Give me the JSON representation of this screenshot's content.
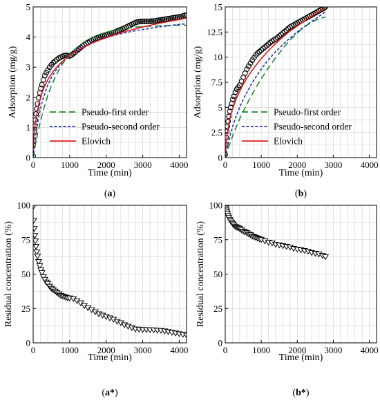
{
  "chart_data": [
    {
      "id": "a",
      "type": "line",
      "panel_label": "a",
      "xlabel": "Time (min)",
      "ylabel": "Adsorption (mg/g)",
      "xlim": [
        0,
        4200
      ],
      "ylim": [
        0,
        5
      ],
      "xticks": [
        0,
        1000,
        2000,
        3000,
        4000
      ],
      "yticks": [
        0,
        1,
        2,
        3,
        4,
        5
      ],
      "grid": true,
      "legend": "bottom-right",
      "marker_series": {
        "marker": "circle",
        "color": "#000000",
        "x": [
          0,
          15,
          30,
          45,
          60,
          80,
          100,
          120,
          150,
          180,
          210,
          240,
          280,
          320,
          360,
          400,
          450,
          500,
          550,
          600,
          650,
          700,
          750,
          800,
          850,
          900,
          950,
          1000,
          1050,
          1100,
          1150,
          1200,
          1250,
          1300,
          1350,
          1400,
          1450,
          1500,
          1550,
          1600,
          1650,
          1700,
          1750,
          1800,
          1850,
          1900,
          1950,
          2000,
          2050,
          2100,
          2150,
          2200,
          2250,
          2300,
          2350,
          2400,
          2450,
          2500,
          2550,
          2600,
          2650,
          2700,
          2750,
          2800,
          2850,
          2900,
          2950,
          3000,
          3050,
          3100,
          3150,
          3200,
          3250,
          3300,
          3350,
          3400,
          3450,
          3500,
          3550,
          3600,
          3650,
          3700,
          3750,
          3800,
          3850,
          3900,
          3950,
          4000,
          4050,
          4100,
          4150,
          4200
        ],
        "y": [
          0.05,
          0.55,
          0.85,
          1.05,
          1.25,
          1.45,
          1.62,
          1.78,
          1.98,
          2.15,
          2.3,
          2.42,
          2.58,
          2.72,
          2.82,
          2.9,
          3.0,
          3.08,
          3.15,
          3.2,
          3.25,
          3.3,
          3.33,
          3.36,
          3.38,
          3.39,
          3.38,
          3.37,
          3.4,
          3.45,
          3.5,
          3.55,
          3.6,
          3.65,
          3.7,
          3.74,
          3.78,
          3.82,
          3.86,
          3.89,
          3.92,
          3.95,
          3.97,
          3.99,
          4.01,
          4.03,
          4.05,
          4.07,
          4.09,
          4.11,
          4.13,
          4.15,
          4.17,
          4.2,
          4.22,
          4.25,
          4.27,
          4.3,
          4.33,
          4.36,
          4.39,
          4.42,
          4.45,
          4.48,
          4.5,
          4.51,
          4.52,
          4.52,
          4.52,
          4.52,
          4.52,
          4.52,
          4.53,
          4.53,
          4.54,
          4.55,
          4.56,
          4.57,
          4.58,
          4.59,
          4.6,
          4.61,
          4.62,
          4.63,
          4.64,
          4.65,
          4.66,
          4.67,
          4.68,
          4.7,
          4.72,
          4.73
        ]
      },
      "series": [
        {
          "name": "Pseudo-first order",
          "color": "#1a8a2e",
          "style": "long-dash",
          "x": [
            0,
            50,
            100,
            150,
            200,
            250,
            300,
            400,
            500,
            600,
            700,
            800,
            900,
            1000,
            1200,
            1400,
            1600,
            1800,
            2000,
            2200,
            2400,
            2600,
            2800,
            3000,
            3200,
            3400,
            3600,
            3800,
            4000,
            4200
          ],
          "y": [
            0.0,
            0.35,
            0.66,
            0.95,
            1.21,
            1.45,
            1.67,
            2.06,
            2.38,
            2.66,
            2.9,
            3.1,
            3.27,
            3.42,
            3.66,
            3.84,
            3.98,
            4.08,
            4.16,
            4.22,
            4.27,
            4.3,
            4.33,
            4.35,
            4.36,
            4.37,
            4.38,
            4.39,
            4.39,
            4.39
          ]
        },
        {
          "name": "Pseudo-second order",
          "color": "#1f2fb8",
          "style": "short-dash",
          "x": [
            0,
            50,
            100,
            150,
            200,
            250,
            300,
            400,
            500,
            600,
            700,
            800,
            900,
            1000,
            1200,
            1400,
            1600,
            1800,
            2000,
            2200,
            2400,
            2600,
            2800,
            3000,
            3200,
            3400,
            3600,
            3800,
            4000,
            4200
          ],
          "y": [
            0.0,
            0.55,
            0.98,
            1.33,
            1.62,
            1.86,
            2.06,
            2.4,
            2.66,
            2.86,
            3.03,
            3.17,
            3.29,
            3.39,
            3.56,
            3.7,
            3.81,
            3.9,
            3.98,
            4.05,
            4.11,
            4.16,
            4.21,
            4.25,
            4.29,
            4.33,
            4.36,
            4.39,
            4.42,
            4.44
          ]
        },
        {
          "name": "Elovich",
          "color": "#e01b1b",
          "style": "solid",
          "x": [
            0,
            20,
            50,
            100,
            150,
            200,
            250,
            300,
            400,
            500,
            600,
            700,
            800,
            900,
            1000,
            1200,
            1400,
            1600,
            1800,
            2000,
            2200,
            2400,
            2600,
            2800,
            3000,
            3200,
            3400,
            3600,
            3800,
            4000,
            4200
          ],
          "y": [
            0.25,
            0.7,
            1.05,
            1.45,
            1.75,
            1.98,
            2.17,
            2.33,
            2.58,
            2.78,
            2.94,
            3.07,
            3.19,
            3.29,
            3.38,
            3.54,
            3.67,
            3.79,
            3.89,
            3.98,
            4.06,
            4.14,
            4.21,
            4.27,
            4.33,
            4.39,
            4.44,
            4.49,
            4.54,
            4.58,
            4.63
          ]
        }
      ]
    },
    {
      "id": "b",
      "type": "line",
      "panel_label": "b",
      "xlabel": "Time (min)",
      "ylabel": "Adsorption (mg/g)",
      "xlim": [
        0,
        4200
      ],
      "ylim": [
        0,
        15
      ],
      "xticks": [
        0,
        1000,
        2000,
        3000,
        4000
      ],
      "yticks": [
        0,
        2.5,
        5,
        7.5,
        10,
        12.5,
        15
      ],
      "ytick_labels": [
        "0",
        "2.5",
        "5",
        "7.5",
        "10",
        "12.5",
        "15"
      ],
      "grid": true,
      "legend": "bottom-right",
      "marker_series": {
        "marker": "circle",
        "color": "#000000",
        "x": [
          0,
          15,
          30,
          45,
          60,
          80,
          100,
          125,
          150,
          180,
          210,
          240,
          280,
          320,
          360,
          400,
          450,
          500,
          550,
          600,
          650,
          700,
          750,
          800,
          850,
          900,
          950,
          1000,
          1050,
          1100,
          1150,
          1200,
          1250,
          1300,
          1350,
          1400,
          1450,
          1500,
          1550,
          1600,
          1650,
          1700,
          1750,
          1800,
          1850,
          1900,
          1950,
          2000,
          2050,
          2100,
          2150,
          2200,
          2250,
          2300,
          2350,
          2400,
          2450,
          2500,
          2550,
          2600,
          2650,
          2700,
          2750,
          2780
        ],
        "y": [
          0.3,
          1.3,
          2.0,
          2.6,
          3.1,
          3.6,
          4.1,
          4.6,
          5.0,
          5.4,
          5.8,
          6.1,
          6.5,
          6.8,
          7.0,
          7.2,
          7.6,
          8.0,
          8.4,
          8.8,
          9.1,
          9.4,
          9.7,
          9.95,
          10.2,
          10.4,
          10.55,
          10.7,
          10.85,
          11.0,
          11.15,
          11.3,
          11.45,
          11.6,
          11.7,
          11.8,
          11.95,
          12.1,
          12.25,
          12.4,
          12.55,
          12.7,
          12.85,
          13.0,
          13.1,
          13.2,
          13.3,
          13.4,
          13.5,
          13.6,
          13.7,
          13.8,
          13.9,
          14.0,
          14.1,
          14.2,
          14.3,
          14.4,
          14.5,
          14.6,
          14.7,
          14.8,
          14.9,
          15.0
        ]
      },
      "series": [
        {
          "name": "Pseudo-first order",
          "color": "#1a8a2e",
          "style": "long-dash",
          "x": [
            0,
            50,
            100,
            150,
            200,
            300,
            400,
            500,
            600,
            700,
            800,
            900,
            1000,
            1100,
            1200,
            1300,
            1400,
            1500,
            1600,
            1700,
            1800,
            1900,
            2000,
            2100,
            2200,
            2300,
            2400,
            2500,
            2600,
            2700,
            2780
          ],
          "y": [
            0.0,
            0.55,
            1.1,
            1.6,
            2.1,
            3.0,
            3.85,
            4.6,
            5.3,
            6.0,
            6.65,
            7.25,
            7.85,
            8.4,
            8.95,
            9.45,
            9.95,
            10.4,
            10.85,
            11.3,
            11.7,
            12.05,
            12.4,
            12.7,
            13.0,
            13.25,
            13.45,
            13.65,
            13.8,
            13.92,
            14.0
          ]
        },
        {
          "name": "Pseudo-second order",
          "color": "#1f2fb8",
          "style": "short-dash",
          "x": [
            0,
            50,
            100,
            150,
            200,
            300,
            400,
            500,
            600,
            700,
            800,
            900,
            1000,
            1100,
            1200,
            1300,
            1400,
            1500,
            1600,
            1700,
            1800,
            1900,
            2000,
            2100,
            2200,
            2300,
            2400,
            2500,
            2600,
            2700,
            2780
          ],
          "y": [
            0.0,
            0.9,
            1.7,
            2.4,
            3.0,
            4.1,
            5.0,
            5.8,
            6.5,
            7.15,
            7.75,
            8.3,
            8.8,
            9.3,
            9.75,
            10.15,
            10.55,
            10.9,
            11.25,
            11.6,
            11.9,
            12.2,
            12.5,
            12.8,
            13.05,
            13.3,
            13.55,
            13.8,
            14.05,
            14.3,
            14.5
          ]
        },
        {
          "name": "Elovich",
          "color": "#e01b1b",
          "style": "solid",
          "x": [
            0,
            30,
            60,
            100,
            150,
            200,
            300,
            400,
            500,
            600,
            700,
            800,
            900,
            1000,
            1100,
            1200,
            1300,
            1400,
            1500,
            1600,
            1700,
            1800,
            1900,
            2000,
            2100,
            2200,
            2300,
            2400,
            2500,
            2600,
            2700,
            2780
          ],
          "y": [
            0.4,
            1.6,
            2.5,
            3.4,
            4.2,
            4.8,
            5.8,
            6.6,
            7.3,
            7.9,
            8.45,
            8.95,
            9.4,
            9.85,
            10.25,
            10.65,
            11.0,
            11.35,
            11.7,
            12.0,
            12.3,
            12.6,
            12.85,
            13.1,
            13.35,
            13.6,
            13.85,
            14.05,
            14.3,
            14.5,
            14.75,
            14.95
          ]
        }
      ]
    },
    {
      "id": "a*",
      "type": "scatter",
      "panel_label": "a*",
      "xlabel": "Time (min)",
      "ylabel": "Residual concentration (%)",
      "xlim": [
        0,
        4200
      ],
      "ylim": [
        0,
        100
      ],
      "xticks": [
        0,
        1000,
        2000,
        3000,
        4000
      ],
      "yticks": [
        0,
        25,
        50,
        75,
        100
      ],
      "grid": true,
      "marker": "triangle-down",
      "x": [
        0,
        15,
        30,
        45,
        60,
        80,
        100,
        120,
        150,
        180,
        210,
        240,
        280,
        320,
        360,
        400,
        450,
        500,
        550,
        600,
        650,
        700,
        750,
        800,
        850,
        900,
        950,
        1000,
        1100,
        1200,
        1300,
        1400,
        1500,
        1600,
        1700,
        1800,
        1900,
        2000,
        2100,
        2200,
        2300,
        2400,
        2500,
        2600,
        2700,
        2800,
        2900,
        3000,
        3100,
        3200,
        3300,
        3400,
        3500,
        3600,
        3700,
        3800,
        3900,
        4000,
        4100,
        4200
      ],
      "y": [
        99,
        89,
        83,
        78,
        74,
        70,
        66,
        63,
        59,
        56,
        53,
        51,
        48,
        46,
        44,
        43,
        41,
        39.5,
        38.5,
        37.5,
        36.5,
        35.5,
        34.5,
        34,
        33.5,
        33,
        32.5,
        32.5,
        32,
        30.5,
        29,
        27,
        25.5,
        24,
        22.5,
        21,
        20,
        19,
        18,
        17,
        15.5,
        14.5,
        13,
        12,
        11,
        10,
        9.8,
        9.6,
        9.5,
        9.4,
        9.3,
        9.1,
        8.9,
        8.5,
        8.0,
        7.5,
        7.0,
        6.5,
        6.0,
        5.5
      ]
    },
    {
      "id": "b*",
      "type": "scatter",
      "panel_label": "b*",
      "xlabel": "Time (min)",
      "ylabel": "Residual concentration (%)",
      "xlim": [
        0,
        4200
      ],
      "ylim": [
        0,
        100
      ],
      "xticks": [
        0,
        1000,
        2000,
        3000,
        4000
      ],
      "yticks": [
        0,
        25,
        50,
        75,
        100
      ],
      "grid": true,
      "marker": "triangle-down",
      "x": [
        0,
        15,
        30,
        45,
        60,
        80,
        100,
        125,
        150,
        180,
        210,
        240,
        280,
        320,
        360,
        400,
        450,
        500,
        550,
        600,
        650,
        700,
        750,
        800,
        850,
        900,
        950,
        1000,
        1100,
        1200,
        1300,
        1400,
        1500,
        1600,
        1700,
        1800,
        1900,
        2000,
        2100,
        2200,
        2300,
        2400,
        2500,
        2600,
        2700,
        2780
      ],
      "y": [
        99,
        98,
        96.5,
        95,
        94,
        92.5,
        91,
        89.5,
        88.5,
        87.5,
        86.5,
        85.5,
        84.5,
        84,
        83.5,
        83,
        82,
        81,
        80.5,
        80,
        79,
        78.5,
        77.5,
        77,
        76.5,
        76,
        75.5,
        75,
        74,
        73,
        72.5,
        71.5,
        71,
        70.5,
        70,
        69.5,
        68.5,
        68,
        67.5,
        67,
        66.5,
        65.5,
        65,
        64.5,
        63.5,
        62.5
      ]
    }
  ]
}
